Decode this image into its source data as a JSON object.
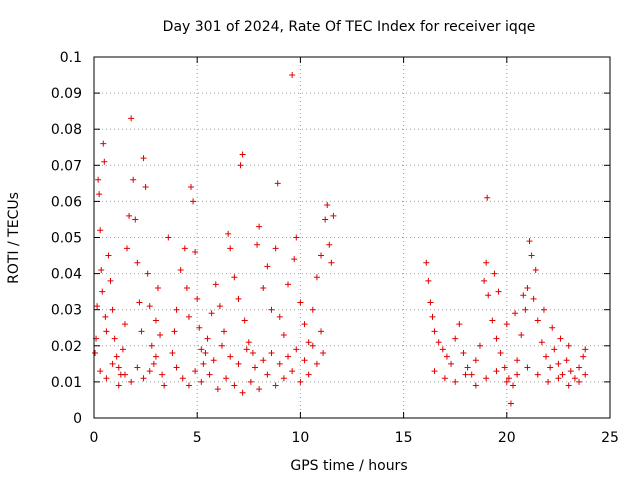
{
  "chart_data": {
    "type": "scatter",
    "title": "Day 301 of 2024, Rate Of TEC Index for receiver iqqe",
    "xlabel": "GPS time / hours",
    "ylabel": "ROTI / TECUs",
    "xlim": [
      0,
      25
    ],
    "ylim": [
      0,
      0.1
    ],
    "x_ticks": [
      0,
      5,
      10,
      15,
      20,
      25
    ],
    "x_tick_labels": [
      "0",
      "5",
      "10",
      "15",
      "20",
      "25"
    ],
    "y_ticks": [
      0,
      0.01,
      0.02,
      0.03,
      0.04,
      0.05,
      0.06,
      0.07,
      0.08,
      0.09,
      0.1
    ],
    "y_tick_labels": [
      "0",
      "0.01",
      "0.02",
      "0.03",
      "0.04",
      "0.05",
      "0.06",
      "0.07",
      "0.08",
      "0.09",
      "0.1"
    ],
    "grid": true,
    "marker": "+",
    "marker_color": "#e00000",
    "series": [
      {
        "name": "ROTI",
        "points": [
          [
            0.05,
            0.018
          ],
          [
            0.1,
            0.022
          ],
          [
            0.15,
            0.031
          ],
          [
            0.2,
            0.066
          ],
          [
            0.25,
            0.062
          ],
          [
            0.3,
            0.052
          ],
          [
            0.35,
            0.041
          ],
          [
            0.4,
            0.035
          ],
          [
            0.45,
            0.076
          ],
          [
            0.5,
            0.071
          ],
          [
            0.55,
            0.028
          ],
          [
            0.6,
            0.024
          ],
          [
            0.7,
            0.045
          ],
          [
            0.8,
            0.038
          ],
          [
            0.9,
            0.03
          ],
          [
            1.0,
            0.022
          ],
          [
            1.1,
            0.017
          ],
          [
            1.2,
            0.014
          ],
          [
            1.3,
            0.012
          ],
          [
            1.4,
            0.019
          ],
          [
            1.5,
            0.026
          ],
          [
            1.6,
            0.047
          ],
          [
            1.7,
            0.056
          ],
          [
            1.8,
            0.083
          ],
          [
            1.9,
            0.066
          ],
          [
            2.0,
            0.055
          ],
          [
            2.1,
            0.043
          ],
          [
            2.2,
            0.032
          ],
          [
            2.3,
            0.024
          ],
          [
            2.4,
            0.072
          ],
          [
            2.5,
            0.064
          ],
          [
            2.6,
            0.04
          ],
          [
            2.7,
            0.031
          ],
          [
            2.8,
            0.02
          ],
          [
            2.9,
            0.015
          ],
          [
            3.0,
            0.027
          ],
          [
            3.1,
            0.036
          ],
          [
            3.2,
            0.023
          ],
          [
            3.3,
            0.012
          ],
          [
            3.4,
            0.009
          ],
          [
            0.3,
            0.013
          ],
          [
            0.6,
            0.011
          ],
          [
            0.9,
            0.015
          ],
          [
            1.2,
            0.009
          ],
          [
            1.5,
            0.012
          ],
          [
            1.8,
            0.01
          ],
          [
            2.1,
            0.014
          ],
          [
            2.4,
            0.011
          ],
          [
            2.7,
            0.013
          ],
          [
            3.0,
            0.017
          ],
          [
            3.6,
            0.05
          ],
          [
            3.8,
            0.018
          ],
          [
            3.9,
            0.024
          ],
          [
            4.0,
            0.03
          ],
          [
            4.2,
            0.041
          ],
          [
            4.4,
            0.047
          ],
          [
            4.5,
            0.036
          ],
          [
            4.6,
            0.028
          ],
          [
            4.7,
            0.064
          ],
          [
            4.8,
            0.06
          ],
          [
            4.9,
            0.046
          ],
          [
            5.0,
            0.033
          ],
          [
            5.1,
            0.025
          ],
          [
            5.2,
            0.019
          ],
          [
            5.3,
            0.015
          ],
          [
            5.5,
            0.022
          ],
          [
            5.7,
            0.029
          ],
          [
            5.9,
            0.037
          ],
          [
            6.1,
            0.031
          ],
          [
            6.3,
            0.024
          ],
          [
            6.5,
            0.051
          ],
          [
            6.6,
            0.047
          ],
          [
            6.8,
            0.039
          ],
          [
            7.0,
            0.033
          ],
          [
            7.1,
            0.07
          ],
          [
            7.2,
            0.073
          ],
          [
            7.3,
            0.027
          ],
          [
            7.5,
            0.021
          ],
          [
            7.7,
            0.018
          ],
          [
            7.9,
            0.048
          ],
          [
            8.0,
            0.053
          ],
          [
            8.2,
            0.036
          ],
          [
            8.4,
            0.042
          ],
          [
            8.6,
            0.03
          ],
          [
            8.8,
            0.047
          ],
          [
            8.9,
            0.065
          ],
          [
            9.0,
            0.028
          ],
          [
            9.2,
            0.023
          ],
          [
            9.4,
            0.037
          ],
          [
            9.6,
            0.095
          ],
          [
            9.7,
            0.044
          ],
          [
            9.8,
            0.05
          ],
          [
            10.0,
            0.032
          ],
          [
            10.2,
            0.026
          ],
          [
            10.4,
            0.021
          ],
          [
            10.6,
            0.03
          ],
          [
            10.8,
            0.039
          ],
          [
            11.0,
            0.045
          ],
          [
            11.2,
            0.055
          ],
          [
            11.3,
            0.059
          ],
          [
            11.4,
            0.048
          ],
          [
            11.5,
            0.043
          ],
          [
            11.6,
            0.056
          ],
          [
            4.0,
            0.014
          ],
          [
            4.3,
            0.011
          ],
          [
            4.6,
            0.009
          ],
          [
            4.9,
            0.013
          ],
          [
            5.2,
            0.01
          ],
          [
            5.6,
            0.012
          ],
          [
            6.0,
            0.008
          ],
          [
            6.4,
            0.011
          ],
          [
            6.8,
            0.009
          ],
          [
            7.2,
            0.007
          ],
          [
            7.6,
            0.01
          ],
          [
            8.0,
            0.008
          ],
          [
            8.4,
            0.012
          ],
          [
            8.8,
            0.009
          ],
          [
            9.2,
            0.011
          ],
          [
            9.6,
            0.013
          ],
          [
            10.0,
            0.01
          ],
          [
            10.4,
            0.012
          ],
          [
            10.8,
            0.015
          ],
          [
            11.1,
            0.018
          ],
          [
            5.4,
            0.018
          ],
          [
            5.8,
            0.016
          ],
          [
            6.2,
            0.02
          ],
          [
            6.6,
            0.017
          ],
          [
            7.0,
            0.015
          ],
          [
            7.4,
            0.019
          ],
          [
            7.8,
            0.014
          ],
          [
            8.2,
            0.016
          ],
          [
            8.6,
            0.018
          ],
          [
            9.0,
            0.015
          ],
          [
            9.4,
            0.017
          ],
          [
            9.8,
            0.019
          ],
          [
            10.2,
            0.016
          ],
          [
            10.6,
            0.02
          ],
          [
            11.0,
            0.024
          ],
          [
            16.1,
            0.043
          ],
          [
            16.2,
            0.038
          ],
          [
            16.3,
            0.032
          ],
          [
            16.4,
            0.028
          ],
          [
            16.5,
            0.024
          ],
          [
            16.7,
            0.021
          ],
          [
            16.9,
            0.019
          ],
          [
            17.1,
            0.017
          ],
          [
            17.3,
            0.015
          ],
          [
            17.5,
            0.022
          ],
          [
            17.7,
            0.026
          ],
          [
            17.9,
            0.018
          ],
          [
            18.1,
            0.014
          ],
          [
            18.3,
            0.012
          ],
          [
            18.5,
            0.016
          ],
          [
            18.7,
            0.02
          ],
          [
            18.9,
            0.038
          ],
          [
            19.0,
            0.043
          ],
          [
            19.05,
            0.061
          ],
          [
            19.1,
            0.034
          ],
          [
            19.3,
            0.027
          ],
          [
            19.5,
            0.022
          ],
          [
            19.7,
            0.018
          ],
          [
            19.9,
            0.014
          ],
          [
            20.1,
            0.011
          ],
          [
            20.2,
            0.004
          ],
          [
            20.3,
            0.009
          ],
          [
            20.5,
            0.016
          ],
          [
            20.7,
            0.023
          ],
          [
            20.9,
            0.03
          ],
          [
            21.0,
            0.036
          ],
          [
            21.1,
            0.049
          ],
          [
            21.2,
            0.045
          ],
          [
            21.3,
            0.033
          ],
          [
            21.5,
            0.027
          ],
          [
            21.7,
            0.021
          ],
          [
            21.9,
            0.017
          ],
          [
            22.1,
            0.014
          ],
          [
            22.3,
            0.019
          ],
          [
            22.5,
            0.015
          ],
          [
            22.7,
            0.012
          ],
          [
            22.9,
            0.016
          ],
          [
            23.1,
            0.013
          ],
          [
            23.3,
            0.011
          ],
          [
            23.5,
            0.014
          ],
          [
            23.7,
            0.017
          ],
          [
            23.8,
            0.019
          ],
          [
            16.5,
            0.013
          ],
          [
            17.0,
            0.011
          ],
          [
            17.5,
            0.01
          ],
          [
            18.0,
            0.012
          ],
          [
            18.5,
            0.009
          ],
          [
            19.0,
            0.011
          ],
          [
            19.5,
            0.013
          ],
          [
            20.0,
            0.01
          ],
          [
            20.5,
            0.012
          ],
          [
            21.0,
            0.014
          ],
          [
            21.5,
            0.012
          ],
          [
            22.0,
            0.01
          ],
          [
            22.5,
            0.011
          ],
          [
            23.0,
            0.009
          ],
          [
            23.5,
            0.01
          ],
          [
            23.8,
            0.012
          ],
          [
            19.4,
            0.04
          ],
          [
            19.6,
            0.035
          ],
          [
            20.0,
            0.026
          ],
          [
            20.4,
            0.029
          ],
          [
            20.8,
            0.034
          ],
          [
            21.4,
            0.041
          ],
          [
            21.8,
            0.03
          ],
          [
            22.2,
            0.025
          ],
          [
            22.6,
            0.022
          ],
          [
            23.0,
            0.02
          ]
        ]
      }
    ]
  }
}
